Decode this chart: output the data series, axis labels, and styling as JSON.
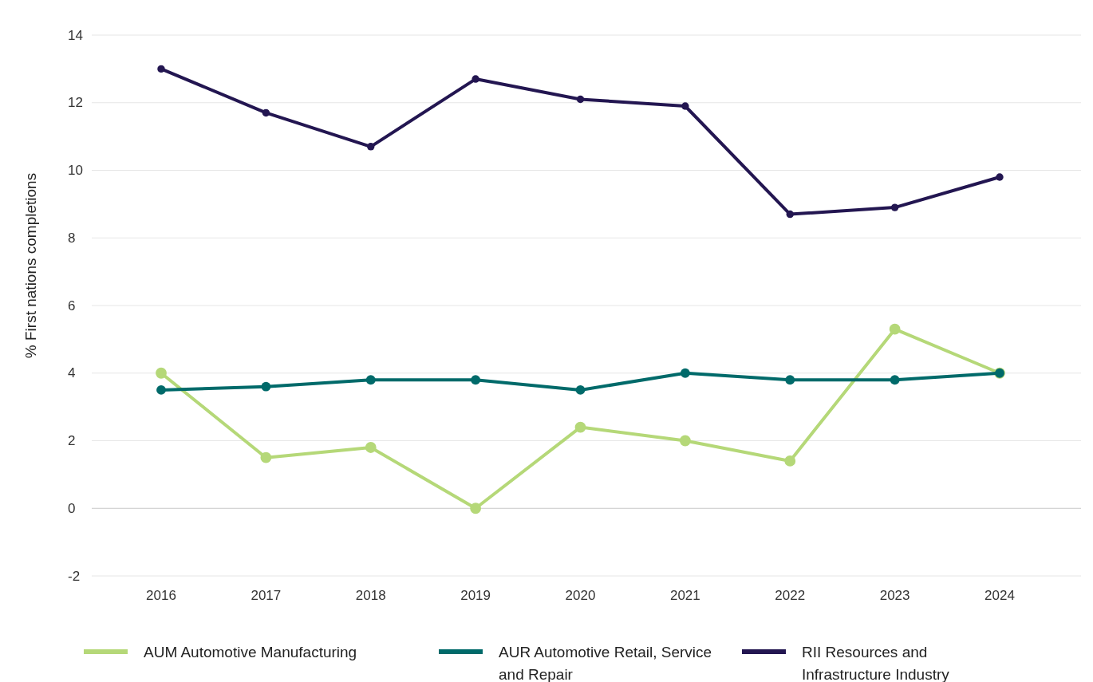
{
  "chart_data": {
    "type": "line",
    "ylabel": "% First nations completions",
    "categories": [
      "2016",
      "2017",
      "2018",
      "2019",
      "2020",
      "2021",
      "2022",
      "2023",
      "2024"
    ],
    "series": [
      {
        "name": "AUM Automotive Manufacturing",
        "color": "#b5d878",
        "values": [
          4.0,
          1.5,
          1.8,
          0.0,
          2.4,
          2.0,
          1.4,
          5.3,
          4.0
        ]
      },
      {
        "name": "AUR Automotive Retail, Service and Repair",
        "color": "#006a6a",
        "values": [
          3.5,
          3.6,
          3.8,
          3.8,
          3.5,
          4.0,
          3.8,
          3.8,
          4.0
        ]
      },
      {
        "name": "RII Resources and Infrastructure Industry",
        "color": "#231651",
        "values": [
          13.0,
          11.7,
          10.7,
          12.7,
          12.1,
          11.9,
          8.7,
          8.9,
          9.8
        ]
      }
    ],
    "ylim": [
      -2,
      14
    ],
    "yticks": [
      -2,
      0,
      2,
      4,
      6,
      8,
      10,
      12,
      14
    ],
    "grid": "y",
    "legend": "bottom",
    "marker": "circle",
    "line_style": "solid"
  }
}
